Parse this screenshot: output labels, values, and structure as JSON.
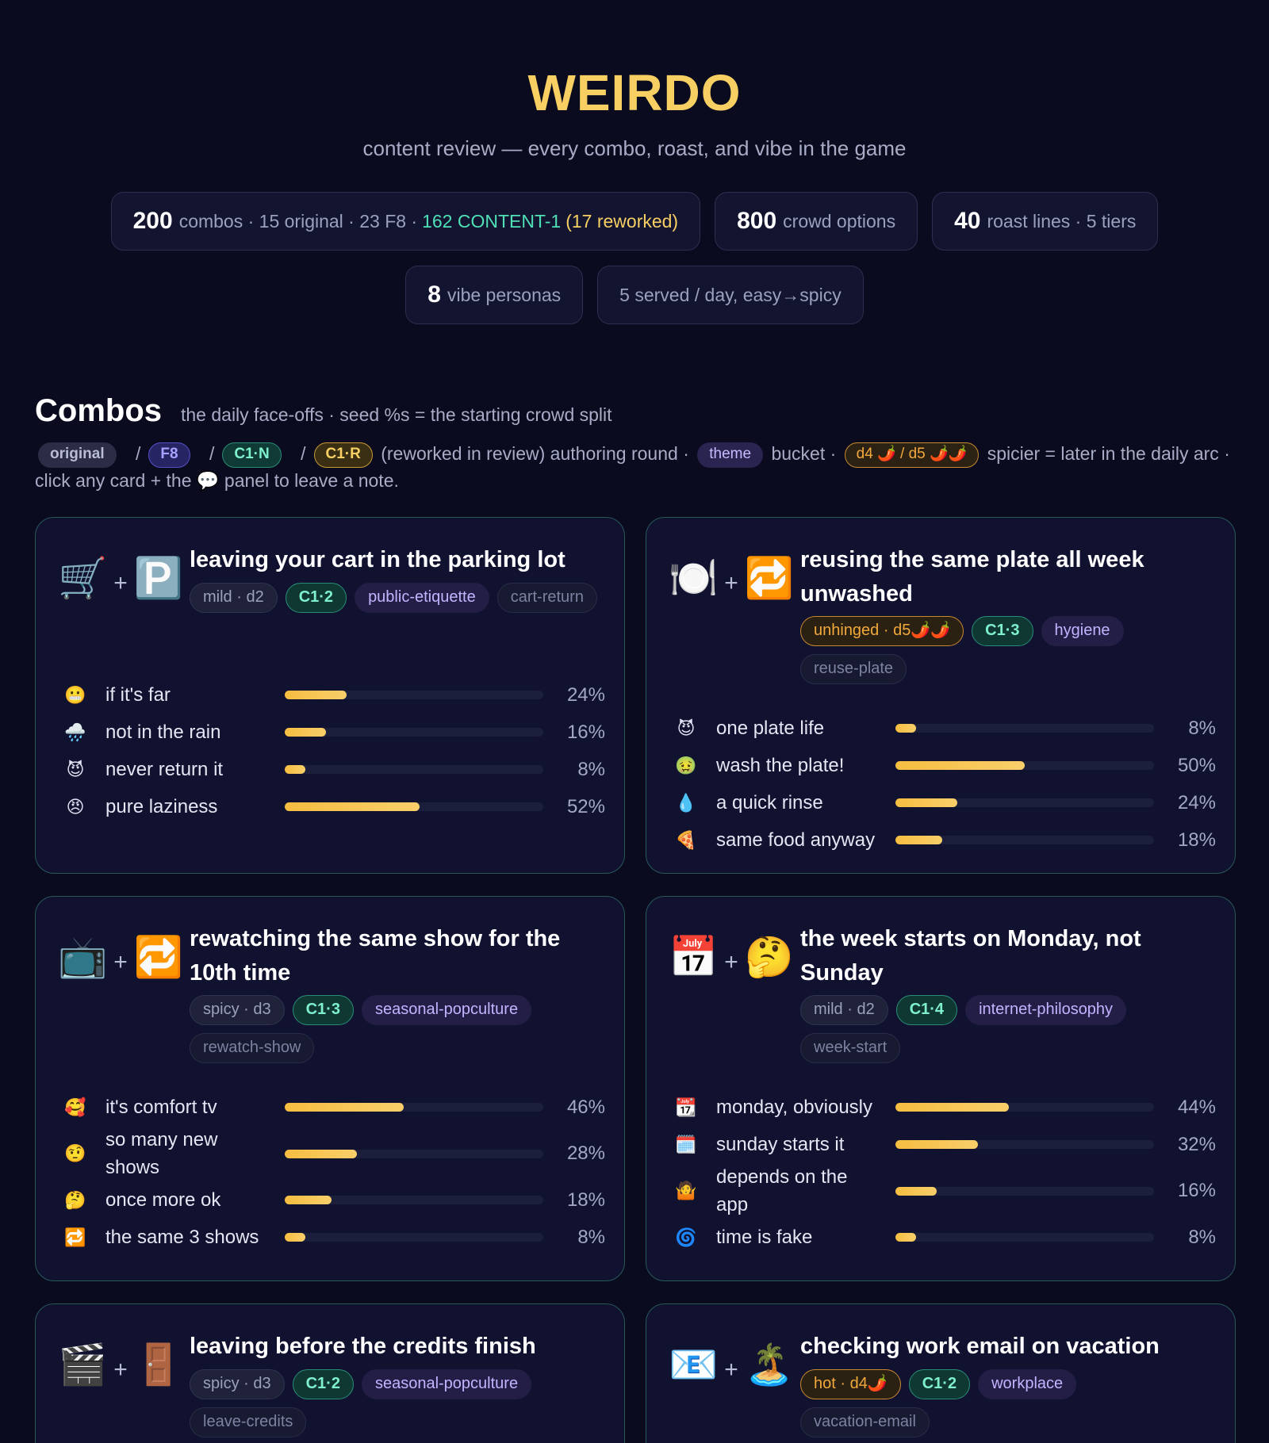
{
  "header": {
    "title": "WEIRDO",
    "subtitle": "content review — every combo, roast, and vibe in the game"
  },
  "stats": {
    "combos_num": "200",
    "combos_text": "combos · 15 original · 23 F8 ·",
    "combos_c1": "162 CONTENT-1",
    "combos_reworked": "(17 reworked)",
    "crowd_num": "800",
    "crowd_text": "crowd options",
    "roast_num": "40",
    "roast_text": "roast lines · 5 tiers",
    "vibe_num": "8",
    "vibe_text": "vibe personas",
    "served_text": "5 served / day, easy→spicy"
  },
  "section": {
    "title": "Combos",
    "note": "the daily face-offs · seed %s = the starting crowd split"
  },
  "legend": {
    "original": "original",
    "f8": "F8",
    "c1n": "C1·N",
    "c1r": "C1·R",
    "reworked_text": "(reworked in review) authoring round ·",
    "theme": "theme",
    "bucket_text": "bucket ·",
    "d45": "d4 🌶️ / d5 🌶️🌶️",
    "tail_text": "spicier = later in the daily arc · click any card + the 💬 panel to leave a note."
  },
  "cards": [
    {
      "emoji_a": "🛒",
      "emoji_b": "🅿️",
      "title": "leaving your cart in the parking lot",
      "tier": "mild · d2",
      "tier_hot": false,
      "round": "C1·2",
      "theme": "public-etiquette",
      "key": "cart-return",
      "options": [
        {
          "emoji": "😬",
          "label": "if it's far",
          "pct": 24
        },
        {
          "emoji": "🌧️",
          "label": "not in the rain",
          "pct": 16
        },
        {
          "emoji": "😈",
          "label": "never return it",
          "pct": 8
        },
        {
          "emoji": "😠",
          "label": "pure laziness",
          "pct": 52
        }
      ]
    },
    {
      "emoji_a": "🍽️",
      "emoji_b": "🔁",
      "title": "reusing the same plate all week unwashed",
      "tier": "unhinged · d5🌶️🌶️",
      "tier_hot": true,
      "round": "C1·3",
      "theme": "hygiene",
      "key": "reuse-plate",
      "options": [
        {
          "emoji": "😈",
          "label": "one plate life",
          "pct": 8
        },
        {
          "emoji": "🤢",
          "label": "wash the plate!",
          "pct": 50
        },
        {
          "emoji": "💧",
          "label": "a quick rinse",
          "pct": 24
        },
        {
          "emoji": "🍕",
          "label": "same food anyway",
          "pct": 18
        }
      ]
    },
    {
      "emoji_a": "📺",
      "emoji_b": "🔁",
      "title": "rewatching the same show for the 10th time",
      "tier": "spicy · d3",
      "tier_hot": false,
      "round": "C1·3",
      "theme": "seasonal-popculture",
      "key": "rewatch-show",
      "options": [
        {
          "emoji": "🥰",
          "label": "it's comfort tv",
          "pct": 46
        },
        {
          "emoji": "🤨",
          "label": "so many new shows",
          "pct": 28
        },
        {
          "emoji": "🤔",
          "label": "once more ok",
          "pct": 18
        },
        {
          "emoji": "🔁",
          "label": "the same 3 shows",
          "pct": 8
        }
      ]
    },
    {
      "emoji_a": "📅",
      "emoji_b": "🤔",
      "title": "the week starts on Monday, not Sunday",
      "tier": "mild · d2",
      "tier_hot": false,
      "round": "C1·4",
      "theme": "internet-philosophy",
      "key": "week-start",
      "options": [
        {
          "emoji": "📆",
          "label": "monday, obviously",
          "pct": 44
        },
        {
          "emoji": "🗓️",
          "label": "sunday starts it",
          "pct": 32
        },
        {
          "emoji": "🤷",
          "label": "depends on the app",
          "pct": 16
        },
        {
          "emoji": "🌀",
          "label": "time is fake",
          "pct": 8
        }
      ]
    },
    {
      "emoji_a": "🎬",
      "emoji_b": "🚪",
      "title": "leaving before the credits finish",
      "tier": "spicy · d3",
      "tier_hot": false,
      "round": "C1·2",
      "theme": "seasonal-popculture",
      "key": "leave-credits",
      "options": []
    },
    {
      "emoji_a": "📧",
      "emoji_b": "🏝️",
      "title": "checking work email on vacation",
      "tier": "hot · d4🌶️",
      "tier_hot": true,
      "round": "C1·2",
      "theme": "workplace",
      "key": "vacation-email",
      "options": []
    }
  ]
}
